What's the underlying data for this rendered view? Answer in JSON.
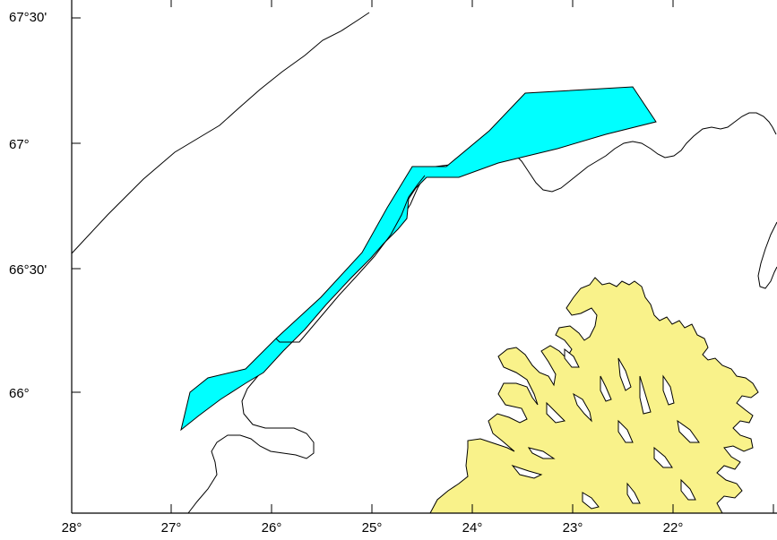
{
  "map": {
    "latitude_labels": [
      "67°30'",
      "67°",
      "66°30'",
      "66°"
    ],
    "longitude_labels": [
      "28°",
      "27°",
      "26°",
      "25°",
      "24°",
      "23°",
      "22°"
    ],
    "colors": {
      "land": "#f9f28a",
      "polygon": "#00ffff",
      "outline": "#000000",
      "background": "#ffffff"
    }
  }
}
